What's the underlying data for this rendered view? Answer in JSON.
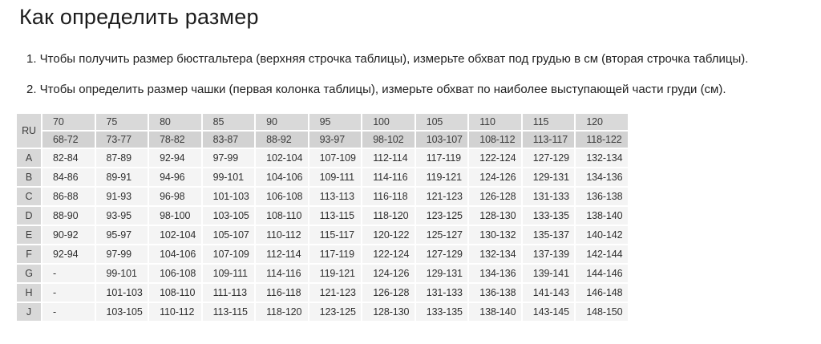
{
  "page": {
    "title": "Как определить размер",
    "instructions": [
      "1. Чтобы получить размер бюстгальтера (верхняя строчка таблицы), измерьте обхват под грудью в см (вторая строчка таблицы).",
      "2. Чтобы определить размер чашки (первая колонка таблицы), измерьте обхват по наиболее выступающей части груди (см)."
    ]
  },
  "table": {
    "corner_label": "RU",
    "band_sizes": [
      "70",
      "75",
      "80",
      "85",
      "90",
      "95",
      "100",
      "105",
      "110",
      "115",
      "120"
    ],
    "underbust_ranges": [
      "68-72",
      "73-77",
      "78-82",
      "83-87",
      "88-92",
      "93-97",
      "98-102",
      "103-107",
      "108-112",
      "113-117",
      "118-122"
    ],
    "rows": [
      {
        "cup": "A",
        "values": [
          "82-84",
          "87-89",
          "92-94",
          "97-99",
          "102-104",
          "107-109",
          "112-114",
          "117-119",
          "122-124",
          "127-129",
          "132-134"
        ]
      },
      {
        "cup": "B",
        "values": [
          "84-86",
          "89-91",
          "94-96",
          "99-101",
          "104-106",
          "109-111",
          "114-116",
          "119-121",
          "124-126",
          "129-131",
          "134-136"
        ]
      },
      {
        "cup": "C",
        "values": [
          "86-88",
          "91-93",
          "96-98",
          "101-103",
          "106-108",
          "113-113",
          "116-118",
          "121-123",
          "126-128",
          "131-133",
          "136-138"
        ]
      },
      {
        "cup": "D",
        "values": [
          "88-90",
          "93-95",
          "98-100",
          "103-105",
          "108-110",
          "113-115",
          "118-120",
          "123-125",
          "128-130",
          "133-135",
          "138-140"
        ]
      },
      {
        "cup": "E",
        "values": [
          "90-92",
          "95-97",
          "102-104",
          "105-107",
          "110-112",
          "115-117",
          "120-122",
          "125-127",
          "130-132",
          "135-137",
          "140-142"
        ]
      },
      {
        "cup": "F",
        "values": [
          "92-94",
          "97-99",
          "104-106",
          "107-109",
          "112-114",
          "117-119",
          "122-124",
          "127-129",
          "132-134",
          "137-139",
          "142-144"
        ]
      },
      {
        "cup": "G",
        "values": [
          "-",
          "99-101",
          "106-108",
          "109-111",
          "114-116",
          "119-121",
          "124-126",
          "129-131",
          "134-136",
          "139-141",
          "144-146"
        ]
      },
      {
        "cup": "H",
        "values": [
          "-",
          "101-103",
          "108-110",
          "111-113",
          "116-118",
          "121-123",
          "126-128",
          "131-133",
          "136-138",
          "141-143",
          "146-148"
        ]
      },
      {
        "cup": "J",
        "values": [
          "-",
          "103-105",
          "110-112",
          "113-115",
          "118-120",
          "123-125",
          "128-130",
          "133-135",
          "138-140",
          "143-145",
          "148-150"
        ]
      }
    ]
  },
  "colors": {
    "page_background": "#ffffff",
    "header_row1_bg": "#d9d9d9",
    "header_row2_bg": "#d2d2d2",
    "cup_column_bg": "#d8d8d8",
    "data_cell_bg": "#f4f4f4",
    "text": "#212121",
    "table_text": "#303030"
  }
}
